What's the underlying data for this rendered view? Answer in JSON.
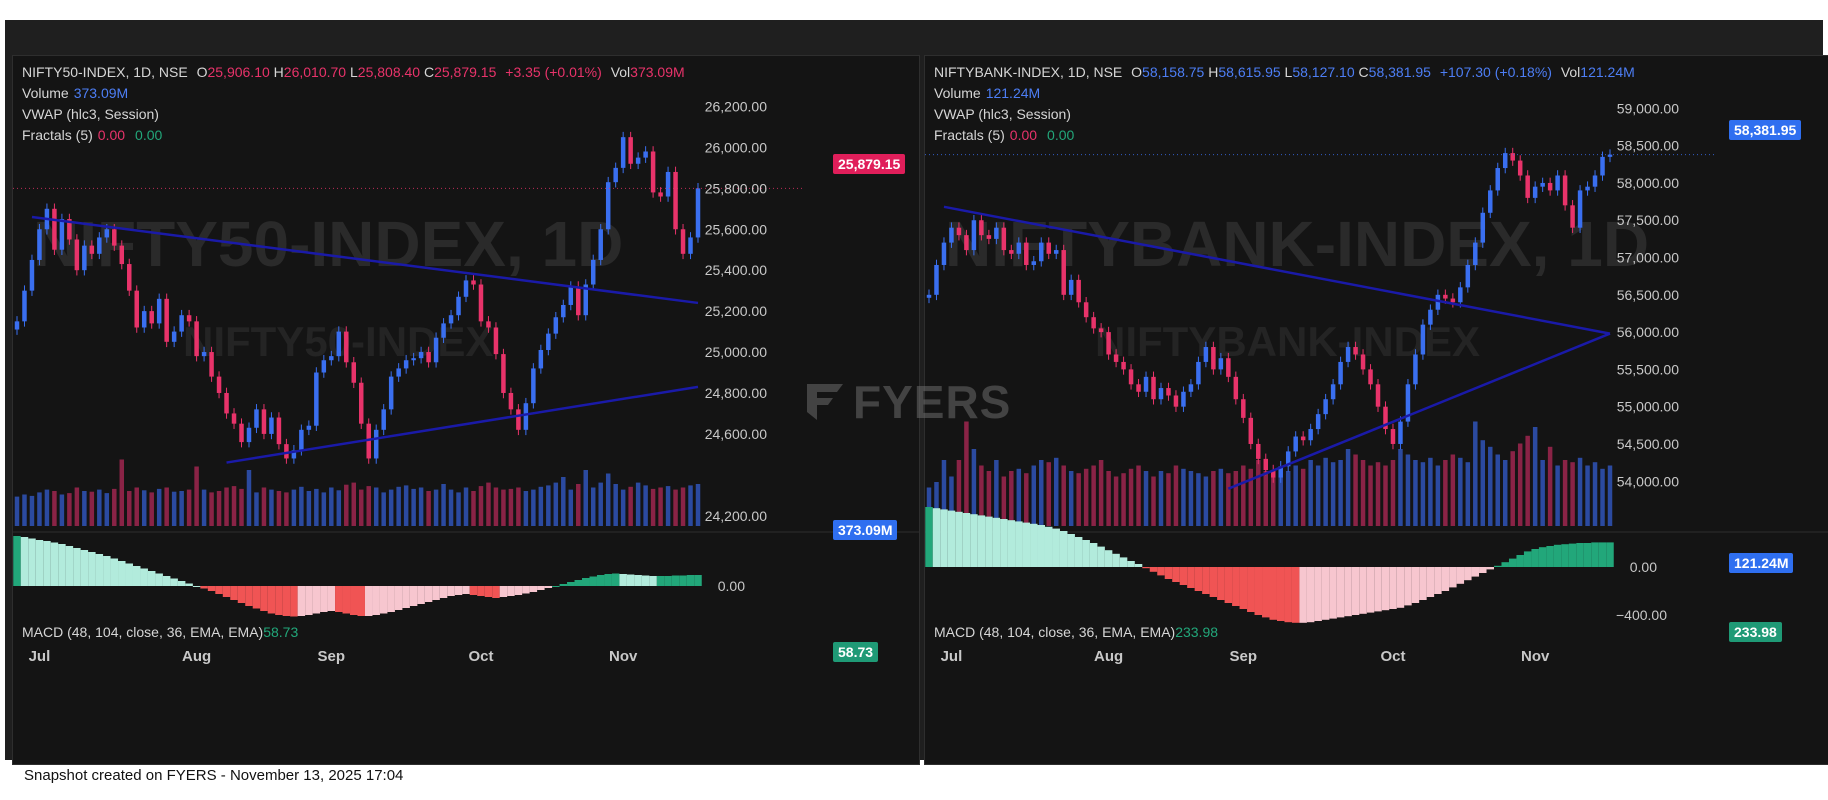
{
  "footer": "Snapshot created on FYERS - November 13, 2025 17:04",
  "brand": "FYERS",
  "charts": [
    {
      "id": "left",
      "symbol_line": "NIFTY50-INDEX, 1D, NSE",
      "ohlc": {
        "o_label": "O",
        "o": "25,906.10",
        "h_label": "H",
        "h": "26,010.70",
        "l_label": "L",
        "l": "25,808.40",
        "c_label": "C",
        "c": "25,879.15",
        "chg": "+3.35 (+0.01%)",
        "vol_label": "Vol",
        "vol": "373.09M"
      },
      "volume_label": "Volume",
      "volume_value": "373.09M",
      "vwap_label": "VWAP (hlc3, Session)",
      "fractals_label": "Fractals (5)",
      "fractals_a": "0.00",
      "fractals_b": "0.00",
      "macd_label": "MACD (48, 104, close, 36, EMA, EMA)",
      "macd_value": "58.73",
      "price_tag": "25,879.15",
      "volume_tag": "373.09M",
      "macd_tag": "58.73",
      "watermark_big": "NIFTY50-INDEX, 1D",
      "watermark_small": "NIFTY50-INDEX",
      "color": "#e8336a"
    },
    {
      "id": "right",
      "symbol_line": "NIFTYBANK-INDEX, 1D, NSE",
      "ohlc": {
        "o_label": "O",
        "o": "58,158.75",
        "h_label": "H",
        "h": "58,615.95",
        "l_label": "L",
        "l": "58,127.10",
        "c_label": "C",
        "c": "58,381.95",
        "chg": "+107.30 (+0.18%)",
        "vol_label": "Vol",
        "vol": "121.24M"
      },
      "volume_label": "Volume",
      "volume_value": "121.24M",
      "vwap_label": "VWAP (hlc3, Session)",
      "fractals_label": "Fractals (5)",
      "fractals_a": "0.00",
      "fractals_b": "0.00",
      "macd_label": "MACD (48, 104, close, 36, EMA, EMA)",
      "macd_value": "233.98",
      "price_tag": "58,381.95",
      "volume_tag": "121.24M",
      "macd_tag": "233.98",
      "watermark_big": "NIFTYBANK-INDEX, 1D",
      "watermark_small": "NIFTYBANK-INDEX",
      "color": "#3a6ff0"
    }
  ],
  "chart_data": [
    {
      "type": "candlestick",
      "title": "NIFTY50-INDEX, 1D, NSE",
      "y_ticks": [
        "26,200.00",
        "26,000.00",
        "25,800.00",
        "25,600.00",
        "25,400.00",
        "25,200.00",
        "25,000.00",
        "24,800.00",
        "24,600.00",
        "24,200.00"
      ],
      "y_tick_values": [
        26200,
        26000,
        25800,
        25600,
        25400,
        25200,
        25000,
        24800,
        24600,
        24200
      ],
      "ylim": [
        24150,
        26300
      ],
      "x_ticks": [
        {
          "label": "Jul",
          "index": 3
        },
        {
          "label": "Aug",
          "index": 24
        },
        {
          "label": "Sep",
          "index": 42
        },
        {
          "label": "Oct",
          "index": 62
        },
        {
          "label": "Nov",
          "index": 81
        }
      ],
      "close": [
        25150,
        25300,
        25450,
        25600,
        25700,
        25500,
        25650,
        25550,
        25400,
        25520,
        25480,
        25560,
        25600,
        25520,
        25430,
        25300,
        25120,
        25200,
        25140,
        25260,
        25050,
        25100,
        25180,
        25150,
        24980,
        25000,
        24880,
        24800,
        24700,
        24650,
        24560,
        24630,
        24720,
        24600,
        24680,
        24550,
        24480,
        24520,
        24620,
        24640,
        24900,
        24960,
        24980,
        25100,
        24950,
        24850,
        24650,
        24480,
        24620,
        24720,
        24880,
        24920,
        24960,
        24970,
        25000,
        24950,
        25070,
        25140,
        25180,
        25270,
        25350,
        25330,
        25150,
        25120,
        24990,
        24800,
        24720,
        24620,
        24750,
        24920,
        25010,
        25090,
        25170,
        25230,
        25320,
        25180,
        25330,
        25450,
        25600,
        25830,
        25900,
        26050,
        25920,
        25950,
        25980,
        25780,
        25760,
        25880,
        25600,
        25480,
        25560,
        25800
      ],
      "volume_values": [
        0.42,
        0.45,
        0.43,
        0.48,
        0.52,
        0.5,
        0.45,
        0.47,
        0.55,
        0.5,
        0.49,
        0.52,
        0.47,
        0.53,
        0.95,
        0.5,
        0.55,
        0.51,
        0.48,
        0.53,
        0.55,
        0.49,
        0.5,
        0.52,
        0.85,
        0.52,
        0.48,
        0.5,
        0.55,
        0.57,
        0.53,
        0.8,
        0.48,
        0.55,
        0.52,
        0.5,
        0.48,
        0.52,
        0.56,
        0.5,
        0.53,
        0.48,
        0.55,
        0.51,
        0.59,
        0.62,
        0.52,
        0.57,
        0.55,
        0.48,
        0.52,
        0.56,
        0.58,
        0.53,
        0.55,
        0.5,
        0.52,
        0.6,
        0.52,
        0.48,
        0.55,
        0.5,
        0.57,
        0.62,
        0.55,
        0.52,
        0.53,
        0.55,
        0.5,
        0.52,
        0.56,
        0.58,
        0.62,
        0.7,
        0.52,
        0.6,
        0.8,
        0.55,
        0.62,
        0.75,
        0.6,
        0.52,
        0.56,
        0.62,
        0.58,
        0.53,
        0.55,
        0.57,
        0.52,
        0.55,
        0.58,
        0.6
      ],
      "macd_values": [
        1.0,
        0.98,
        0.95,
        0.92,
        0.9,
        0.87,
        0.84,
        0.8,
        0.76,
        0.72,
        0.68,
        0.64,
        0.6,
        0.55,
        0.5,
        0.45,
        0.4,
        0.35,
        0.3,
        0.25,
        0.2,
        0.15,
        0.1,
        0.05,
        0.0,
        -0.05,
        -0.1,
        -0.16,
        -0.22,
        -0.28,
        -0.34,
        -0.4,
        -0.45,
        -0.5,
        -0.55,
        -0.58,
        -0.6,
        -0.61,
        -0.6,
        -0.58,
        -0.55,
        -0.52,
        -0.5,
        -0.52,
        -0.55,
        -0.58,
        -0.6,
        -0.6,
        -0.58,
        -0.55,
        -0.52,
        -0.48,
        -0.44,
        -0.4,
        -0.36,
        -0.32,
        -0.28,
        -0.24,
        -0.2,
        -0.18,
        -0.16,
        -0.18,
        -0.2,
        -0.22,
        -0.24,
        -0.22,
        -0.2,
        -0.18,
        -0.15,
        -0.12,
        -0.08,
        -0.04,
        0.0,
        0.04,
        0.08,
        0.12,
        0.16,
        0.19,
        0.22,
        0.24,
        0.25,
        0.24,
        0.23,
        0.22,
        0.21,
        0.2,
        0.2,
        0.2,
        0.21,
        0.21,
        0.22,
        0.22
      ],
      "trendlines": [
        {
          "from": [
            2,
            25660
          ],
          "to": [
            91,
            25240
          ]
        },
        {
          "from": [
            28,
            24460
          ],
          "to": [
            91,
            24830
          ]
        }
      ]
    },
    {
      "type": "candlestick",
      "title": "NIFTYBANK-INDEX, 1D, NSE",
      "y_ticks": [
        "59,000.00",
        "58,500.00",
        "58,000.00",
        "57,500.00",
        "57,000.00",
        "56,500.00",
        "56,000.00",
        "55,500.00",
        "55,000.00",
        "54,500.00",
        "54,000.00"
      ],
      "y_tick_values": [
        59000,
        58500,
        58000,
        57500,
        57000,
        56500,
        56000,
        55500,
        55000,
        54500,
        54000
      ],
      "ylim": [
        53400,
        59300
      ],
      "macd_ticks": [
        "0.00",
        "−400.00"
      ],
      "x_ticks": [
        {
          "label": "Jul",
          "index": 3
        },
        {
          "label": "Aug",
          "index": 24
        },
        {
          "label": "Sep",
          "index": 42
        },
        {
          "label": "Oct",
          "index": 62
        },
        {
          "label": "Nov",
          "index": 81
        }
      ],
      "close": [
        56500,
        56900,
        57200,
        57400,
        57300,
        57100,
        57500,
        57300,
        57250,
        57400,
        57100,
        57050,
        57200,
        56900,
        56950,
        57200,
        57050,
        57100,
        56500,
        56700,
        56400,
        56200,
        56050,
        56000,
        55700,
        55600,
        55500,
        55300,
        55200,
        55400,
        55100,
        55250,
        55150,
        55000,
        55200,
        55300,
        55600,
        55800,
        55500,
        55650,
        55400,
        55100,
        54850,
        54500,
        54300,
        54150,
        54050,
        54200,
        54400,
        54600,
        54550,
        54700,
        54900,
        55100,
        55300,
        55600,
        55800,
        55700,
        55500,
        55300,
        55000,
        54700,
        54500,
        54800,
        55300,
        55700,
        56100,
        56300,
        56500,
        56450,
        56400,
        56600,
        56900,
        57200,
        57600,
        57900,
        58200,
        58400,
        58300,
        58100,
        57800,
        57950,
        58000,
        57900,
        58100,
        57700,
        57400,
        57900,
        57950,
        58100,
        58350,
        58380
      ],
      "volume_values": [
        0.35,
        0.4,
        0.6,
        0.45,
        0.6,
        0.95,
        0.7,
        0.55,
        0.5,
        0.6,
        0.45,
        0.5,
        0.52,
        0.48,
        0.55,
        0.6,
        0.58,
        0.62,
        0.55,
        0.5,
        0.48,
        0.52,
        0.55,
        0.6,
        0.5,
        0.45,
        0.48,
        0.52,
        0.55,
        0.5,
        0.45,
        0.5,
        0.48,
        0.55,
        0.52,
        0.5,
        0.48,
        0.45,
        0.5,
        0.52,
        0.48,
        0.5,
        0.55,
        0.52,
        0.6,
        0.5,
        0.48,
        0.45,
        0.5,
        0.55,
        0.52,
        0.6,
        0.55,
        0.62,
        0.58,
        0.6,
        0.7,
        0.65,
        0.6,
        0.55,
        0.58,
        0.55,
        0.6,
        0.7,
        0.65,
        0.6,
        0.58,
        0.62,
        0.55,
        0.6,
        0.65,
        0.62,
        0.58,
        0.95,
        0.78,
        0.72,
        0.65,
        0.6,
        0.68,
        0.75,
        0.82,
        0.9,
        0.6,
        0.72,
        0.55,
        0.6,
        0.58,
        0.62,
        0.55,
        0.58,
        0.52,
        0.55
      ],
      "macd_values": [
        1.0,
        0.98,
        0.96,
        0.94,
        0.92,
        0.9,
        0.88,
        0.86,
        0.84,
        0.82,
        0.8,
        0.78,
        0.76,
        0.74,
        0.72,
        0.7,
        0.67,
        0.64,
        0.6,
        0.55,
        0.5,
        0.45,
        0.4,
        0.34,
        0.28,
        0.22,
        0.16,
        0.1,
        0.05,
        -0.02,
        -0.08,
        -0.14,
        -0.2,
        -0.25,
        -0.3,
        -0.35,
        -0.4,
        -0.45,
        -0.5,
        -0.55,
        -0.6,
        -0.65,
        -0.7,
        -0.75,
        -0.8,
        -0.84,
        -0.88,
        -0.9,
        -0.92,
        -0.93,
        -0.93,
        -0.92,
        -0.9,
        -0.88,
        -0.86,
        -0.84,
        -0.82,
        -0.8,
        -0.78,
        -0.76,
        -0.74,
        -0.72,
        -0.7,
        -0.68,
        -0.64,
        -0.6,
        -0.55,
        -0.5,
        -0.45,
        -0.4,
        -0.34,
        -0.28,
        -0.22,
        -0.16,
        -0.1,
        -0.04,
        0.02,
        0.08,
        0.14,
        0.2,
        0.26,
        0.3,
        0.33,
        0.35,
        0.37,
        0.38,
        0.39,
        0.4,
        0.4,
        0.41,
        0.41,
        0.41
      ],
      "trendlines": [
        {
          "from": [
            2,
            57680
          ],
          "to": [
            91,
            55980
          ]
        },
        {
          "from": [
            40,
            53900
          ],
          "to": [
            91,
            55980
          ]
        }
      ]
    }
  ]
}
